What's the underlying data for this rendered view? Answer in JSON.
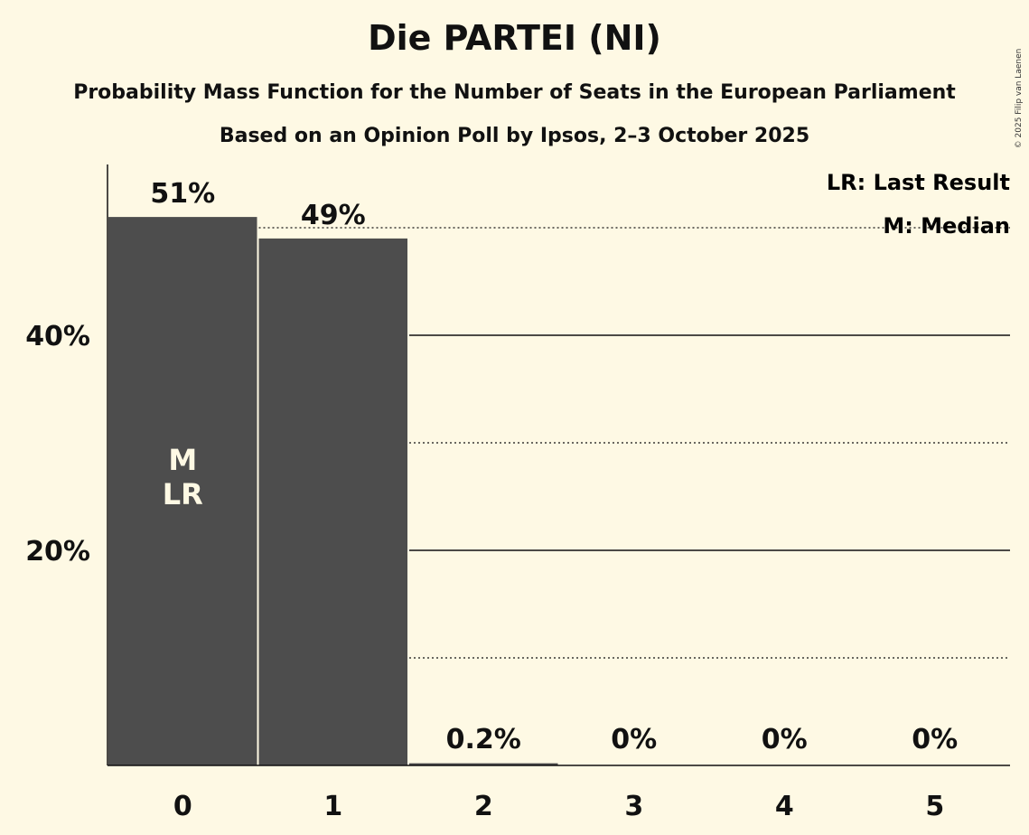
{
  "title": "Die PARTEI (NI)",
  "subtitle1": "Probability Mass Function for the Number of Seats in the European Parliament",
  "subtitle2": "Based on an Opinion Poll by Ipsos, 2–3 October 2025",
  "copyright": "© 2025 Filip van Laenen",
  "legend": {
    "last_result": "LR: Last Result",
    "median": "M: Median"
  },
  "colors": {
    "background": "#fef9e4",
    "bar": "#4d4d4d",
    "text": "#111111",
    "bar_text": "#fef9e4"
  },
  "chart_data": {
    "type": "bar",
    "categories": [
      "0",
      "1",
      "2",
      "3",
      "4",
      "5"
    ],
    "values": [
      51,
      49,
      0.2,
      0,
      0,
      0
    ],
    "value_labels": [
      "51%",
      "49%",
      "0.2%",
      "0%",
      "0%",
      "0%"
    ],
    "ytick_values": [
      20,
      40
    ],
    "ytick_labels": [
      "20%",
      "40%"
    ],
    "solid_gridlines": [
      20,
      40
    ],
    "dotted_gridlines": [
      10,
      30,
      50
    ],
    "ylim": [
      0,
      55
    ],
    "median_category": "0",
    "last_result_category": "0",
    "bar_markers": [
      "M",
      "LR"
    ],
    "legend_position": "top-right"
  }
}
